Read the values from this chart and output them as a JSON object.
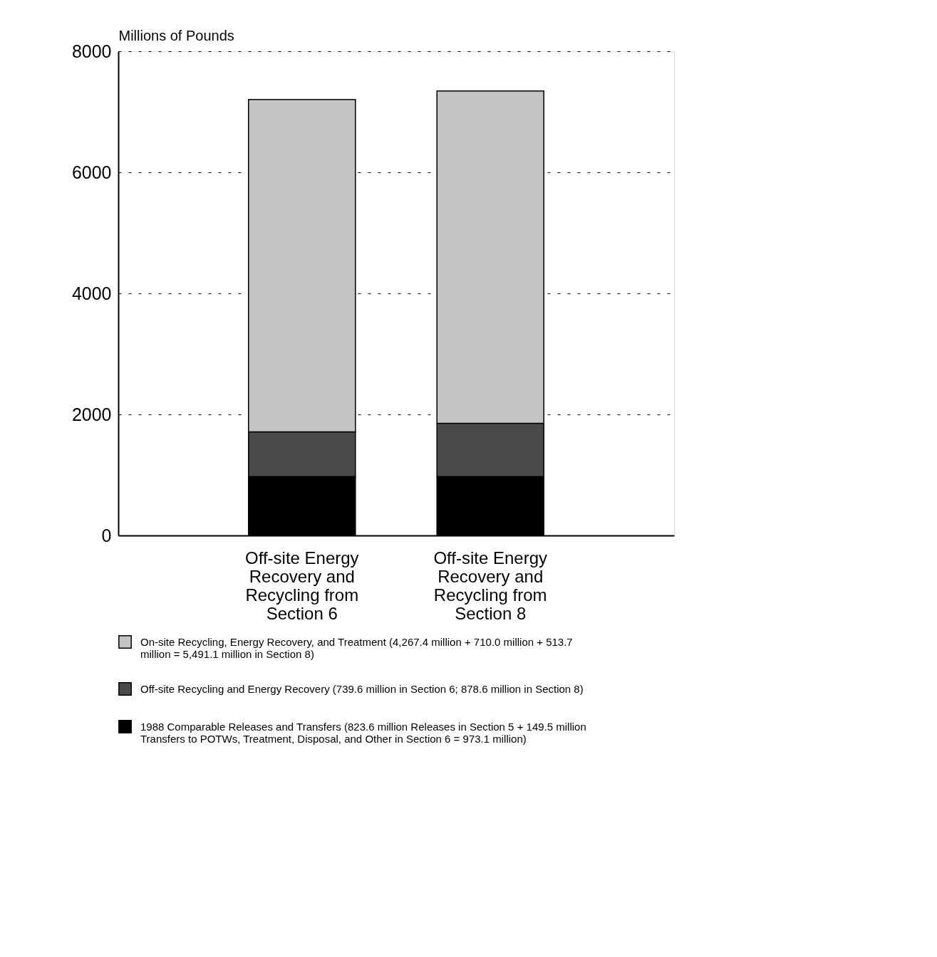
{
  "chart_data": {
    "type": "bar",
    "stacked": true,
    "ylabel": "Millions of Pounds",
    "categories": [
      "Off-site Energy Recovery and Recycling from Section 6",
      "Off-site Energy Recovery and Recycling from Section 8"
    ],
    "series": [
      {
        "name": "1988 Comparable Releases and Transfers (823.6 million Releases in Section 5  +  149.5 million Transfers to POTWs, Treatment, Disposal, and Other in Section 6  =  973.1 million)",
        "color": "#000000",
        "values": [
          973,
          973
        ]
      },
      {
        "name": "Off-site Recycling and Energy Recovery (739.6 million in Section 6; 878.6 million in Section 8)",
        "color": "#4a4a4a",
        "values": [
          740,
          879
        ]
      },
      {
        "name": "On-site Recycling, Energy Recovery, and Treatment (4,267.4 million  +  710.0 million  +  513.7 million  =  5,491.1 million in Section 8)",
        "color": "#c4c4c4",
        "values": [
          5491,
          5491
        ]
      }
    ],
    "ylim": [
      0,
      8000
    ],
    "yticks": [
      0,
      2000,
      4000,
      6000,
      8000
    ],
    "grid": "y",
    "legend": "bottom"
  }
}
